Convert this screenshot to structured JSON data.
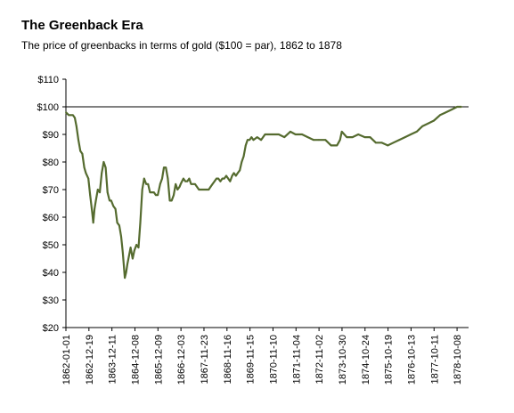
{
  "chart_data": {
    "type": "line",
    "title": "The Greenback Era",
    "subtitle": "The price of greenbacks in terms of gold ($100 = par), 1862 to 1878",
    "xlabel": "",
    "ylabel": "",
    "ylim": [
      20,
      110
    ],
    "grid": false,
    "legend": "none",
    "y_ticks": [
      20,
      30,
      40,
      50,
      60,
      70,
      80,
      90,
      100,
      110
    ],
    "y_tick_labels": [
      "$20",
      "$30",
      "$40",
      "$50",
      "$60",
      "$70",
      "$80",
      "$90",
      "$100",
      "$110"
    ],
    "x_tick_labels": [
      "1862-01-01",
      "1862-12-19",
      "1863-12-11",
      "1864-12-08",
      "1865-12-09",
      "1866-12-03",
      "1867-11-23",
      "1868-11-16",
      "1869-11-15",
      "1870-11-10",
      "1871-11-04",
      "1872-11-02",
      "1873-10-30",
      "1874-10-24",
      "1875-10-19",
      "1876-10-13",
      "1877-10-11",
      "1878-10-08"
    ],
    "reference_line": {
      "y": 100
    },
    "line_color": "#556b2f",
    "series": [
      {
        "x": [
          "1862-01-01",
          "1862-02-15",
          "1862-03-20",
          "1862-04-20",
          "1862-05-20",
          "1862-06-15",
          "1862-07-15",
          "1862-08-15",
          "1862-09-15",
          "1862-10-15",
          "1862-11-10",
          "1862-12-19",
          "1863-01-15",
          "1863-02-15",
          "1863-03-05",
          "1863-03-25",
          "1863-04-15",
          "1863-05-15",
          "1863-06-15",
          "1863-07-15",
          "1863-08-15",
          "1863-09-15",
          "1863-10-15",
          "1863-11-15",
          "1863-12-11",
          "1864-01-15",
          "1864-02-15",
          "1864-03-15",
          "1864-04-15",
          "1864-05-15",
          "1864-06-10",
          "1864-07-11",
          "1864-08-01",
          "1864-08-20",
          "1864-09-15",
          "1864-10-10",
          "1864-11-10",
          "1864-12-08",
          "1865-01-10",
          "1865-02-10",
          "1865-03-10",
          "1865-04-10",
          "1865-05-10",
          "1865-06-10",
          "1865-07-10",
          "1865-08-10",
          "1865-09-10",
          "1865-10-10",
          "1865-11-10",
          "1865-12-09",
          "1866-01-15",
          "1866-02-15",
          "1866-03-15",
          "1866-04-15",
          "1866-05-15",
          "1866-06-15",
          "1866-07-15",
          "1866-08-15",
          "1866-09-15",
          "1866-10-15",
          "1866-11-15",
          "1866-12-03",
          "1867-01-15",
          "1867-02-15",
          "1867-03-15",
          "1867-04-15",
          "1867-05-15",
          "1867-06-15",
          "1867-07-15",
          "1867-08-15",
          "1867-09-15",
          "1867-10-15",
          "1867-11-23",
          "1868-01-15",
          "1868-02-15",
          "1868-03-15",
          "1868-04-15",
          "1868-05-15",
          "1868-06-15",
          "1868-07-15",
          "1868-08-15",
          "1868-09-15",
          "1868-10-15",
          "1868-11-16",
          "1869-01-15",
          "1869-02-15",
          "1869-03-15",
          "1869-04-15",
          "1869-05-15",
          "1869-06-15",
          "1869-07-15",
          "1869-08-15",
          "1869-09-15",
          "1869-10-15",
          "1869-11-15",
          "1869-12-15",
          "1870-01-15",
          "1870-03-15",
          "1870-05-15",
          "1870-07-15",
          "1870-09-15",
          "1870-11-10",
          "1871-02-15",
          "1871-05-15",
          "1871-08-15",
          "1871-11-04",
          "1872-02-15",
          "1872-05-15",
          "1872-08-15",
          "1872-11-02",
          "1873-02-15",
          "1873-05-15",
          "1873-08-15",
          "1873-10-01",
          "1873-10-30",
          "1874-01-15",
          "1874-04-15",
          "1874-07-15",
          "1874-10-24",
          "1875-01-15",
          "1875-04-15",
          "1875-07-15",
          "1875-10-19",
          "1876-01-15",
          "1876-04-15",
          "1876-07-15",
          "1876-10-13",
          "1877-01-15",
          "1877-04-15",
          "1877-07-15",
          "1877-10-11",
          "1878-01-15",
          "1878-04-15",
          "1878-07-15",
          "1878-10-08",
          "1878-12-17"
        ],
        "y": [
          98,
          97,
          97,
          97,
          96,
          93,
          88,
          84,
          83,
          78,
          76,
          74,
          68,
          62,
          58,
          63,
          66,
          70,
          69,
          76,
          80,
          78,
          69,
          66,
          66,
          64,
          63,
          58,
          57,
          53,
          47,
          38,
          40,
          43,
          46,
          49,
          45,
          48,
          50,
          49,
          58,
          70,
          74,
          72,
          72,
          69,
          69,
          69,
          68,
          68,
          72,
          74,
          78,
          78,
          74,
          66,
          66,
          68,
          72,
          70,
          71,
          72,
          74,
          73,
          73,
          74,
          72,
          72,
          72,
          71,
          70,
          70,
          70,
          70,
          70,
          71,
          72,
          73,
          74,
          74,
          73,
          74,
          74,
          75,
          73,
          75,
          76,
          75,
          76,
          77,
          80,
          82,
          86,
          88,
          88,
          89,
          88,
          89,
          88,
          90,
          90,
          90,
          90,
          89,
          91,
          90,
          90,
          89,
          88,
          88,
          88,
          86,
          86,
          88,
          91,
          89,
          89,
          90,
          89,
          89,
          87,
          87,
          86,
          87,
          88,
          89,
          90,
          91,
          93,
          94,
          95,
          97,
          98,
          99,
          100,
          100
        ]
      }
    ]
  }
}
